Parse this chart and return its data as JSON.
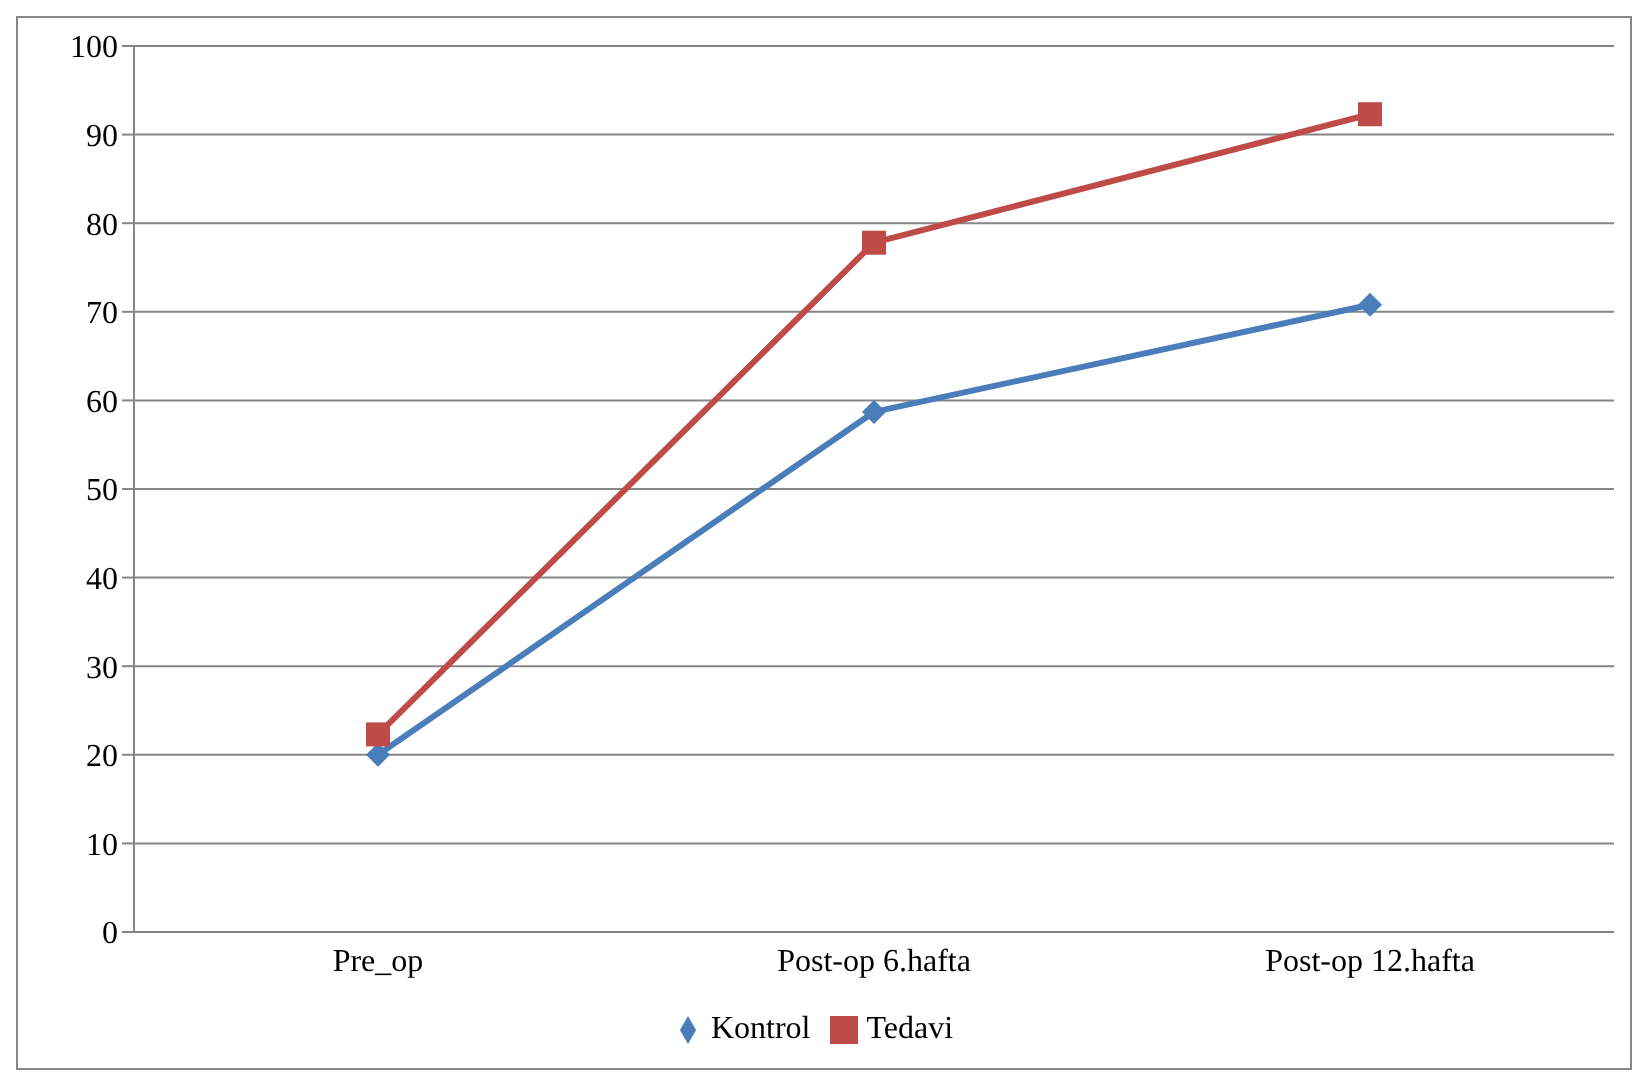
{
  "chart_data": {
    "type": "line",
    "categories": [
      "Pre_op",
      "Post-op 6.hafta",
      "Post-op 12.hafta"
    ],
    "series": [
      {
        "name": "Kontrol",
        "color": "#4a7ebb",
        "values": [
          20,
          58.7,
          70.8
        ],
        "marker": "diamond"
      },
      {
        "name": "Tedavi",
        "color": "#be4b48",
        "values": [
          22.3,
          77.8,
          92.3
        ],
        "marker": "square"
      }
    ],
    "ylim": [
      0,
      100
    ],
    "yticks": [
      0,
      10,
      20,
      30,
      40,
      50,
      60,
      70,
      80,
      90,
      100
    ],
    "grid": "y",
    "legend": "bottom"
  }
}
